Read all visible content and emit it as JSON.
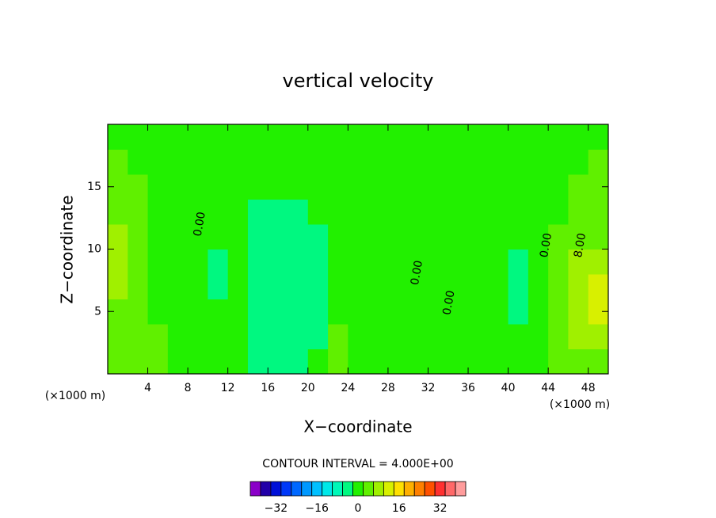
{
  "chart_data": {
    "type": "contour",
    "title": "vertical velocity",
    "x_label": "X−coordinate",
    "y_label": "Z−coordinate",
    "x_unit": "(×1000 m)",
    "y_unit": "(×1000 m)",
    "xlim": [
      0,
      50
    ],
    "ylim": [
      0,
      20
    ],
    "xticks": [
      4,
      8,
      12,
      16,
      20,
      24,
      28,
      32,
      36,
      40,
      44,
      48
    ],
    "yticks": [
      5,
      10,
      15
    ],
    "x": [
      1,
      3,
      5,
      7,
      9,
      11,
      13,
      15,
      17,
      19,
      21,
      23,
      25,
      27,
      29,
      31,
      33,
      35,
      37,
      39,
      41,
      43,
      45,
      47,
      49
    ],
    "y": [
      1,
      3,
      5,
      7,
      9,
      11,
      13,
      15,
      17,
      19
    ],
    "z": [
      [
        4,
        4,
        4,
        0,
        0,
        0,
        0,
        -4,
        -4,
        -4,
        0,
        4,
        0,
        0,
        0,
        0,
        0,
        0,
        0,
        0,
        0,
        0,
        4,
        4,
        4
      ],
      [
        4,
        4,
        4,
        0,
        0,
        0,
        0,
        -4,
        -4,
        -4,
        -4,
        4,
        0,
        0,
        0,
        0,
        0,
        0,
        0,
        0,
        0,
        0,
        4,
        8,
        8
      ],
      [
        4,
        4,
        0,
        0,
        0,
        0,
        0,
        -4,
        -4,
        -4,
        -4,
        0,
        0,
        0,
        0,
        0,
        0,
        0,
        0,
        0,
        -4,
        0,
        4,
        8,
        12
      ],
      [
        8,
        4,
        0,
        0,
        0,
        -4,
        0,
        -4,
        -4,
        -4,
        -4,
        0,
        0,
        0,
        0,
        0,
        0,
        0,
        0,
        0,
        -4,
        0,
        4,
        8,
        12
      ],
      [
        8,
        4,
        0,
        0,
        0,
        -4,
        0,
        -4,
        -4,
        -4,
        -4,
        0,
        0,
        0,
        0,
        0,
        0,
        0,
        0,
        0,
        -4,
        0,
        4,
        8,
        8
      ],
      [
        8,
        4,
        0,
        0,
        0,
        0,
        0,
        -4,
        -4,
        -4,
        -4,
        0,
        0,
        0,
        0,
        0,
        0,
        0,
        0,
        0,
        0,
        0,
        4,
        4,
        4
      ],
      [
        4,
        4,
        0,
        0,
        0,
        0,
        0,
        -4,
        -4,
        -4,
        0,
        0,
        0,
        0,
        0,
        0,
        0,
        0,
        0,
        0,
        0,
        0,
        0,
        4,
        4
      ],
      [
        4,
        4,
        0,
        0,
        0,
        0,
        0,
        0,
        0,
        0,
        0,
        0,
        0,
        0,
        0,
        0,
        0,
        0,
        0,
        0,
        0,
        0,
        0,
        4,
        4
      ],
      [
        4,
        0,
        0,
        0,
        0,
        0,
        0,
        0,
        0,
        0,
        0,
        0,
        0,
        0,
        0,
        0,
        0,
        0,
        0,
        0,
        0,
        0,
        0,
        0,
        4
      ],
      [
        0,
        0,
        0,
        0,
        0,
        0,
        0,
        0,
        0,
        0,
        0,
        0,
        0,
        0,
        0,
        0,
        0,
        0,
        0,
        0,
        0,
        0,
        0,
        0,
        0
      ]
    ],
    "contour_labels": [
      {
        "value": 0,
        "label": "0.00",
        "x": 9.2,
        "y": 12
      },
      {
        "value": 0,
        "label": "0.00",
        "x": 30.9,
        "y": 8.1
      },
      {
        "value": 0,
        "label": "0.00",
        "x": 34.1,
        "y": 5.7
      },
      {
        "value": 0,
        "label": "0.00",
        "x": 43.8,
        "y": 10.3
      },
      {
        "value": 8,
        "label": "8.00",
        "x": 47.2,
        "y": 10.3
      }
    ],
    "contour_interval": "CONTOUR INTERVAL = 4.000E+00",
    "levels": [
      -42,
      -38,
      -34,
      -30,
      -26,
      -22,
      -18,
      -14,
      -10,
      -6,
      -2,
      2,
      6,
      10,
      14,
      18,
      22,
      26,
      30,
      34,
      38,
      42
    ],
    "colors": [
      "#8a00c8",
      "#2200a8",
      "#0010d8",
      "#0038f8",
      "#0068ff",
      "#0098ff",
      "#00c0ff",
      "#00e8e8",
      "#00f8b8",
      "#00f880",
      "#22f000",
      "#60f000",
      "#a0f000",
      "#d8f000",
      "#ffe000",
      "#ffb000",
      "#ff8000",
      "#ff5000",
      "#ff3030",
      "#ff6868",
      "#ff9c9c"
    ],
    "cbar_ticks": [
      {
        "value": -32,
        "label": "−32"
      },
      {
        "value": -16,
        "label": "−16"
      },
      0,
      16,
      32
    ]
  }
}
